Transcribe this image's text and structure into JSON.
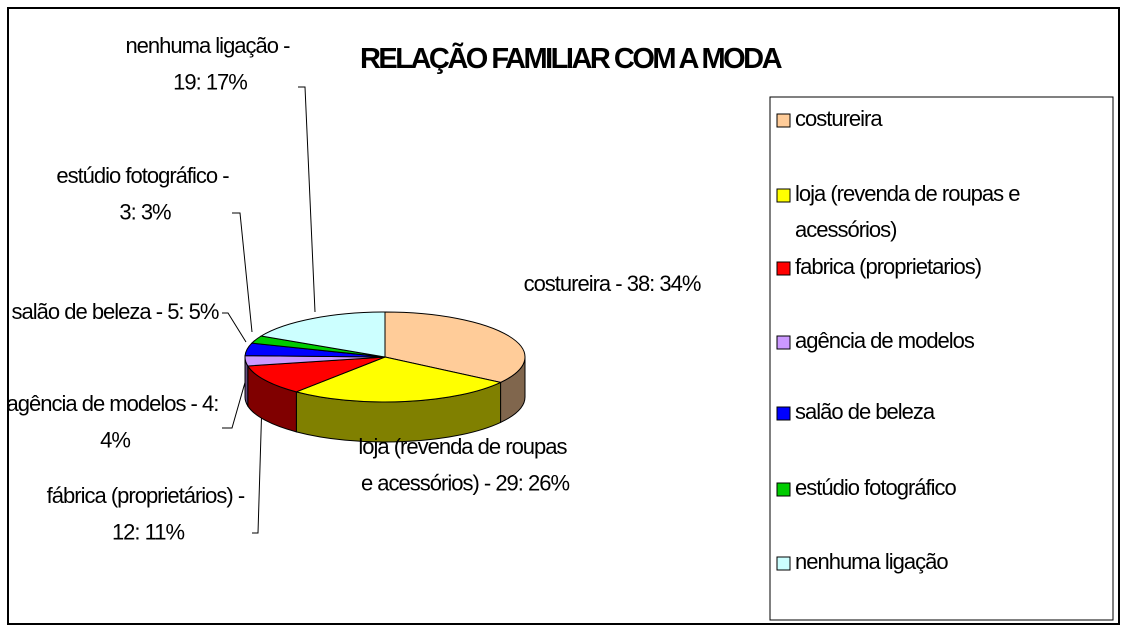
{
  "chart_data": {
    "type": "pie",
    "title": "RELAÇÃO FAMILIAR COM A MODA",
    "categories": [
      "costureira",
      "loja (revenda de roupas e acessórios)",
      "fabrica (proprietarios)",
      "agência de modelos",
      "salão de beleza",
      "estúdio fotográfico",
      "nenhuma ligação"
    ],
    "values": [
      38,
      29,
      12,
      4,
      5,
      3,
      19
    ],
    "value_labels": [
      "costureira - 38: 34%",
      "loja (revenda de roupas e acessórios) - 29: 26%",
      "fábrica (proprietários) - 12: 11%",
      "agência de modelos - 4: 4%",
      "salão de beleza - 5: 5%",
      "estúdio fotográfico - 3: 3%",
      "nenhuma ligação - 19: 17%"
    ],
    "colors": [
      "#ffcc99",
      "#ffff00",
      "#ff0000",
      "#cc99ff",
      "#0000ff",
      "#00cc00",
      "#ccffff"
    ],
    "legend": "right"
  }
}
